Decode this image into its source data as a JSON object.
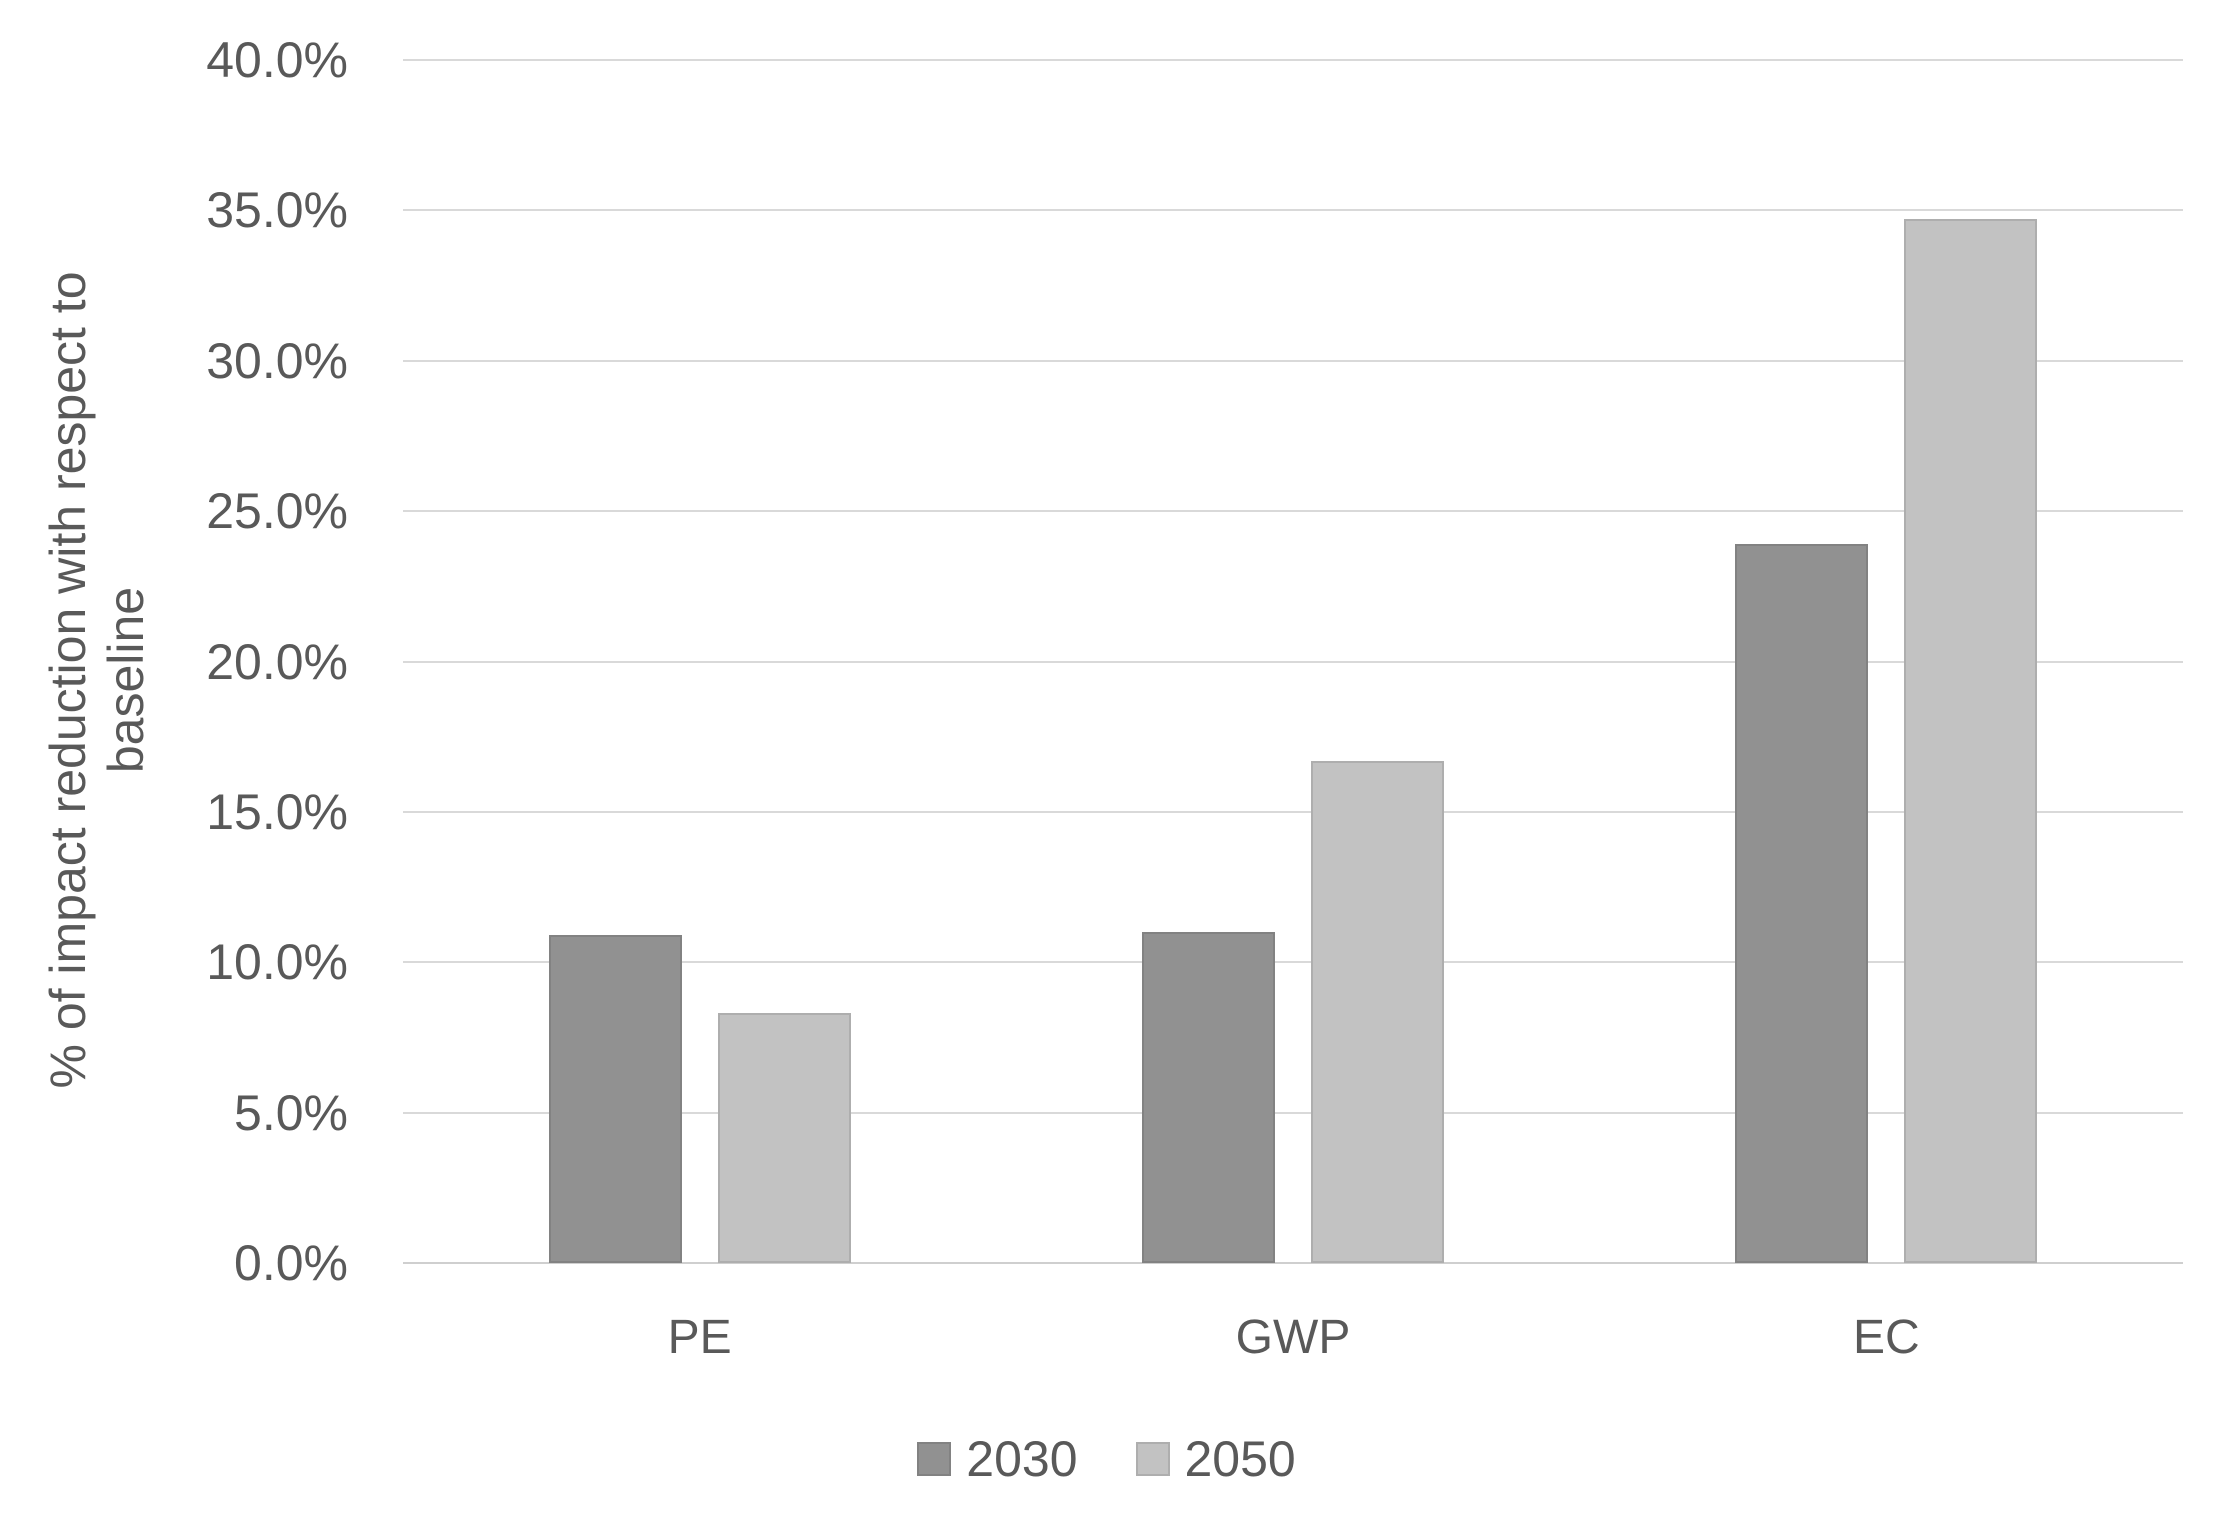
{
  "chart_data": {
    "type": "bar",
    "title": "",
    "categories": [
      "PE",
      "GWP",
      "EC"
    ],
    "series": [
      {
        "name": "2030",
        "color": "#919191",
        "values_pct": [
          10.9,
          11.0,
          23.9
        ]
      },
      {
        "name": "2050",
        "color": "#c2c2c2",
        "values_pct": [
          8.3,
          16.7,
          34.7
        ]
      }
    ],
    "xlabel": "",
    "ylabel": "% of impact reduction with respect to baseline",
    "ylabel_lines": [
      "% of impact reduction with respect to",
      "baseline"
    ],
    "ylim_pct": [
      0,
      40
    ],
    "ytick_step_pct": 5,
    "yticks": [
      "0.0%",
      "5.0%",
      "10.0%",
      "15.0%",
      "20.0%",
      "25.0%",
      "30.0%",
      "35.0%",
      "40.0%"
    ],
    "grid": true,
    "legend_position": "bottom",
    "colors": {
      "gridline": "#d9d9d9",
      "axis_line": "#cfcfcf",
      "text": "#595959",
      "background": "#ffffff"
    }
  }
}
